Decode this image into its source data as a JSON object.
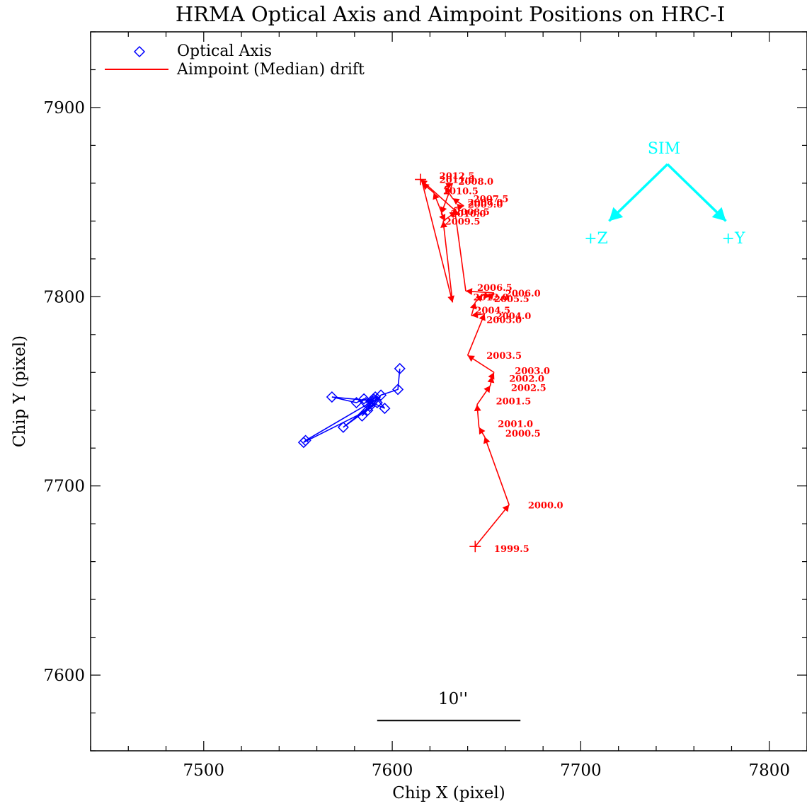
{
  "chart_data": {
    "type": "line",
    "title": "HRMA Optical Axis and Aimpoint Positions on HRC-I",
    "xlabel": "Chip X (pixel)",
    "ylabel": "Chip Y (pixel)",
    "xlim": [
      7440,
      7820
    ],
    "ylim": [
      7560,
      7940
    ],
    "xticks": [
      7500,
      7600,
      7700,
      7800
    ],
    "yticks": [
      7600,
      7700,
      7800,
      7900
    ],
    "legend_position": "top-left",
    "series": [
      {
        "name": "Optical Axis",
        "color": "#0000ff",
        "marker": "diamond",
        "points": [
          [
            7604,
            7762
          ],
          [
            7603,
            7751
          ],
          [
            7594,
            7748
          ],
          [
            7584,
            7737
          ],
          [
            7590,
            7746
          ],
          [
            7586,
            7744
          ],
          [
            7591,
            7747
          ],
          [
            7596,
            7741
          ],
          [
            7585,
            7746
          ],
          [
            7581,
            7744
          ],
          [
            7568,
            7747
          ],
          [
            7589,
            7745
          ],
          [
            7588,
            7742
          ],
          [
            7574,
            7731
          ],
          [
            7592,
            7744
          ],
          [
            7587,
            7740
          ],
          [
            7553,
            7723
          ],
          [
            7554,
            7724
          ],
          [
            7590,
            7745
          ]
        ]
      },
      {
        "name": "Aimpoint (Median) drift",
        "color": "#ff0000",
        "points": [
          {
            "x": 7644,
            "y": 7668,
            "label": "1999.5"
          },
          {
            "x": 7662,
            "y": 7690,
            "label": "2000.0"
          },
          {
            "x": 7649,
            "y": 7726,
            "label": "2000.5"
          },
          {
            "x": 7646,
            "y": 7731,
            "label": "2001.0"
          },
          {
            "x": 7645,
            "y": 7743,
            "label": "2001.5"
          },
          {
            "x": 7652,
            "y": 7753,
            "label": "2002.5"
          },
          {
            "x": 7653,
            "y": 7758,
            "label": "2002.0"
          },
          {
            "x": 7654,
            "y": 7760,
            "label": "2003.0"
          },
          {
            "x": 7640,
            "y": 7769,
            "label": "2003.5"
          },
          {
            "x": 7649,
            "y": 7791,
            "label": "2005.0"
          },
          {
            "x": 7642,
            "y": 7790,
            "label": "2004.0"
          },
          {
            "x": 7644,
            "y": 7797,
            "label": "2004.5"
          },
          {
            "x": 7648,
            "y": 7801,
            "label": "2012.0"
          },
          {
            "x": 7652,
            "y": 7800,
            "label": "2005.5"
          },
          {
            "x": 7654,
            "y": 7802,
            "label": "2006.0"
          },
          {
            "x": 7639,
            "y": 7803,
            "label": "2006.5"
          },
          {
            "x": 7633,
            "y": 7847,
            "label": "2008.5"
          },
          {
            "x": 7638,
            "y": 7848,
            "label": "2009.0"
          },
          {
            "x": 7632,
            "y": 7852,
            "label": "2007.0"
          },
          {
            "x": 7628,
            "y": 7858,
            "label": "2010.5"
          },
          {
            "x": 7632,
            "y": 7860,
            "label": "2008.0"
          },
          {
            "x": 7626,
            "y": 7844,
            "label": "2010.0"
          },
          {
            "x": 7628,
            "y": 7840,
            "label": "2009.5"
          },
          {
            "x": 7622,
            "y": 7855,
            "label": "2011.0"
          },
          {
            "x": 7616,
            "y": 7860,
            "label": "2012.5"
          },
          {
            "x": 7632,
            "y": 7797,
            "label": ""
          },
          {
            "x": 7627,
            "y": 7840,
            "label": ""
          },
          {
            "x": 7634,
            "y": 7845,
            "label": ""
          },
          {
            "x": 7615,
            "y": 7862,
            "label": ""
          }
        ]
      }
    ],
    "year_labels": [
      {
        "text": "1999.5",
        "x": 7654,
        "y": 7667
      },
      {
        "text": "2000.0",
        "x": 7672,
        "y": 7690
      },
      {
        "text": "2000.5",
        "x": 7660,
        "y": 7728
      },
      {
        "text": "2001.0",
        "x": 7656,
        "y": 7733
      },
      {
        "text": "2001.5",
        "x": 7655,
        "y": 7745
      },
      {
        "text": "2002.5",
        "x": 7663,
        "y": 7752
      },
      {
        "text": "2002.0",
        "x": 7662,
        "y": 7757
      },
      {
        "text": "2003.0",
        "x": 7665,
        "y": 7761
      },
      {
        "text": "2003.5",
        "x": 7650,
        "y": 7769
      },
      {
        "text": "2005.0",
        "x": 7650,
        "y": 7788
      },
      {
        "text": "2004.0",
        "x": 7655,
        "y": 7790
      },
      {
        "text": "2004.5",
        "x": 7644,
        "y": 7793
      },
      {
        "text": "2012.0",
        "x": 7643,
        "y": 7800
      },
      {
        "text": "2005.5",
        "x": 7654,
        "y": 7799
      },
      {
        "text": "2006.0",
        "x": 7660,
        "y": 7802
      },
      {
        "text": "2006.5",
        "x": 7645,
        "y": 7805
      },
      {
        "text": "2008.5",
        "x": 7633,
        "y": 7845
      },
      {
        "text": "2009.0",
        "x": 7640,
        "y": 7849
      },
      {
        "text": "2007.0",
        "x": 7640,
        "y": 7850
      },
      {
        "text": "2007.5",
        "x": 7643,
        "y": 7852
      },
      {
        "text": "2010.5",
        "x": 7627,
        "y": 7856
      },
      {
        "text": "2008.0",
        "x": 7635,
        "y": 7861
      },
      {
        "text": "2010.0",
        "x": 7631,
        "y": 7844
      },
      {
        "text": "2009.5",
        "x": 7628,
        "y": 7840
      },
      {
        "text": "2011.0",
        "x": 7625,
        "y": 7862
      },
      {
        "text": "2012.5",
        "x": 7625,
        "y": 7864
      }
    ],
    "sim_indicator": {
      "color": "#00ffff",
      "label": "SIM",
      "plus_z_label": "+Z",
      "plus_y_label": "+Y",
      "origin": [
        7746,
        7870
      ],
      "tip_z": [
        7715,
        7840
      ],
      "tip_y": [
        7777,
        7840
      ]
    },
    "scale_bar": {
      "label": "10''",
      "x_start": 7592,
      "x_end": 7668,
      "y": 7576
    }
  }
}
